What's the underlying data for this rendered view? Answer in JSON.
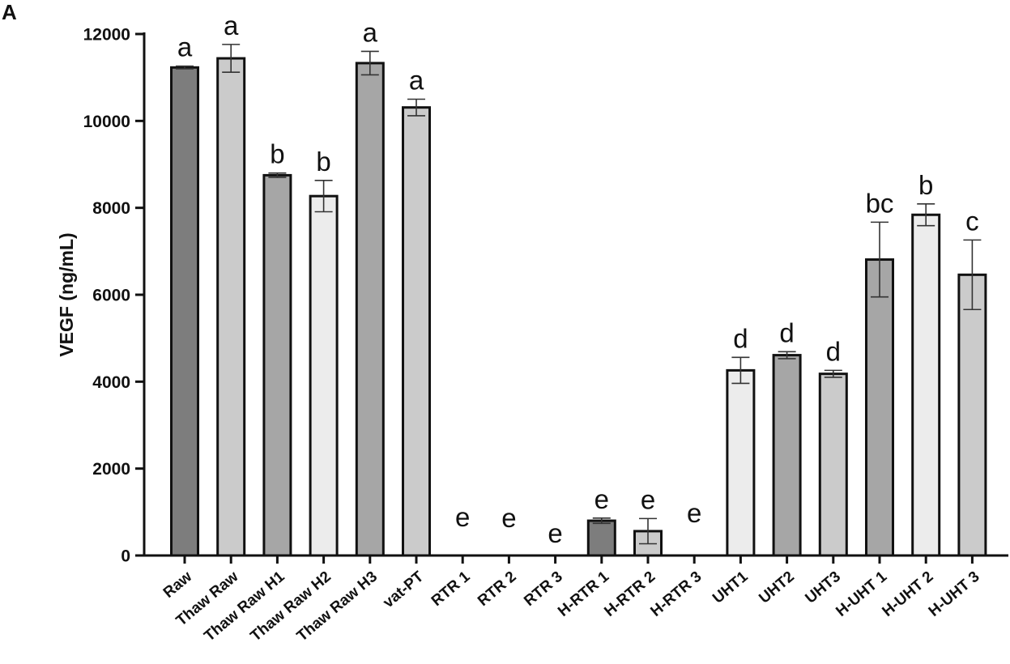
{
  "panel_label": "A",
  "chart_data": {
    "type": "bar",
    "ylabel": "VEGF (ng/mL)",
    "xlabel": "",
    "ylim": [
      0,
      12000
    ],
    "yticks": [
      0,
      2000,
      4000,
      6000,
      8000,
      10000,
      12000
    ],
    "tick_labels": [
      "0",
      "2000",
      "4000",
      "6000",
      "8000",
      "10000",
      "12000"
    ],
    "grid": false,
    "categories": [
      "Raw",
      "Thaw Raw",
      "Thaw Raw H1",
      "Thaw Raw H2",
      "Thaw Raw H3",
      "vat-PT",
      "RTR 1",
      "RTR 2",
      "RTR 3",
      "H-RTR 1",
      "H-RTR 2",
      "H-RTR 3",
      "UHT1",
      "UHT2",
      "UHT3",
      "H-UHT 1",
      "H-UHT 2",
      "H-UHT 3"
    ],
    "values": [
      11230,
      11440,
      8750,
      8270,
      11330,
      10310,
      0,
      0,
      0,
      800,
      560,
      0,
      4260,
      4610,
      4180,
      6810,
      7840,
      6460
    ],
    "errors": [
      30,
      320,
      50,
      360,
      270,
      190,
      0,
      0,
      0,
      60,
      290,
      0,
      300,
      80,
      80,
      860,
      250,
      800
    ],
    "significance": [
      "a",
      "a",
      "b",
      "b",
      "a",
      "a",
      "e",
      "e",
      "e",
      "e",
      "e",
      "e",
      "d",
      "d",
      "d",
      "bc",
      "b",
      "c"
    ],
    "colors": {
      "dark": "#7d7d7d",
      "medium": "#a6a6a6",
      "light": "#cbcbcb",
      "lightest": "#ececec",
      "outline": "#111111"
    },
    "bar_shades": [
      "dark",
      "light",
      "medium",
      "lightest",
      "medium",
      "light",
      "light",
      "light",
      "light",
      "dark",
      "light",
      "light",
      "lightest",
      "medium",
      "light",
      "medium",
      "lightest",
      "light"
    ]
  }
}
